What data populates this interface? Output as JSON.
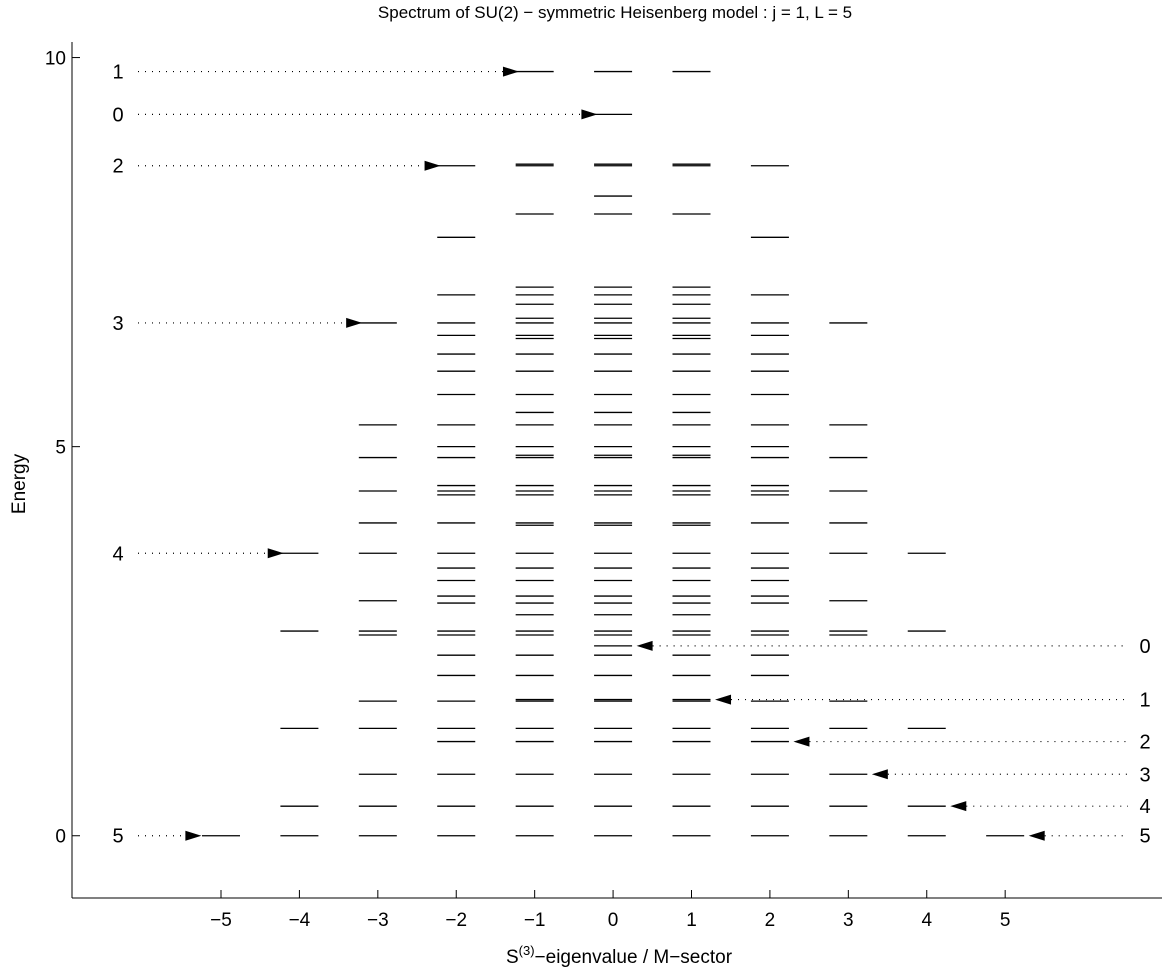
{
  "chart_data": {
    "type": "scatter",
    "marker": "horizontal-dash",
    "title": "Spectrum of SU(2) − symmetric Heisenberg model : j = 1,  L = 5",
    "xlabel": {
      "base": "S",
      "sup": "(3)",
      "rest": "−eigenvalue / M−sector"
    },
    "ylabel": "Energy",
    "xlim": [
      -6.9,
      7.0
    ],
    "ylim": [
      -0.8,
      10.2
    ],
    "x_ticks": [
      -5,
      -4,
      -3,
      -2,
      -1,
      0,
      1,
      2,
      3,
      4,
      5
    ],
    "x_tick_labels": [
      "−5",
      "−4",
      "−3",
      "−2",
      "−1",
      "0",
      "1",
      "2",
      "3",
      "4",
      "5"
    ],
    "y_ticks": [
      0,
      5,
      10
    ],
    "y_tick_labels": [
      "0",
      "5",
      "10"
    ],
    "levels_by_sector": {
      "5": [
        0
      ],
      "4": [
        0,
        0.38,
        1.38,
        2.63,
        3.63
      ],
      "3": [
        0,
        0.38,
        0.79,
        1.38,
        1.73,
        2.58,
        2.63,
        3.02,
        3.63,
        4.02,
        4.43,
        4.86,
        5.28,
        6.59
      ],
      "2": [
        0,
        0.38,
        0.79,
        1.21,
        1.38,
        1.73,
        2.06,
        2.32,
        2.58,
        2.63,
        2.99,
        3.08,
        3.28,
        3.44,
        3.63,
        4.02,
        4.38,
        4.43,
        4.5,
        4.86,
        5.0,
        5.28,
        5.67,
        5.97,
        6.19,
        6.43,
        6.59,
        6.95,
        7.69,
        8.61
      ],
      "1": [
        0,
        0.38,
        0.79,
        1.21,
        1.38,
        1.73,
        1.75,
        2.06,
        2.32,
        2.58,
        2.63,
        2.84,
        2.99,
        3.08,
        3.28,
        3.44,
        3.63,
        3.99,
        4.02,
        4.38,
        4.43,
        4.5,
        4.86,
        4.89,
        5.0,
        5.28,
        5.44,
        5.67,
        5.97,
        6.19,
        6.39,
        6.43,
        6.59,
        6.65,
        6.83,
        6.95,
        7.05,
        7.99,
        8.61,
        8.63,
        9.82
      ],
      "0": [
        0,
        0.38,
        0.79,
        1.21,
        1.38,
        1.73,
        1.75,
        2.06,
        2.32,
        2.44,
        2.58,
        2.63,
        2.84,
        2.99,
        3.08,
        3.28,
        3.44,
        3.63,
        3.99,
        4.02,
        4.38,
        4.43,
        4.5,
        4.86,
        4.89,
        5.0,
        5.28,
        5.44,
        5.67,
        5.97,
        6.19,
        6.39,
        6.43,
        6.59,
        6.65,
        6.83,
        6.95,
        7.05,
        7.99,
        8.22,
        8.61,
        8.63,
        9.27,
        9.82
      ]
    },
    "annotations": [
      {
        "label": "1",
        "y": 9.82,
        "side": "left",
        "arrow_x": -1.2
      },
      {
        "label": "0",
        "y": 9.27,
        "side": "left",
        "arrow_x": -0.2
      },
      {
        "label": "2",
        "y": 8.61,
        "side": "left",
        "arrow_x": -2.2
      },
      {
        "label": "3",
        "y": 6.59,
        "side": "left",
        "arrow_x": -3.2
      },
      {
        "label": "4",
        "y": 3.63,
        "side": "left",
        "arrow_x": -4.2
      },
      {
        "label": "5",
        "y": 0,
        "side": "left",
        "arrow_x": -5.25
      },
      {
        "label": "0",
        "y": 2.44,
        "side": "right",
        "arrow_x": 0.3
      },
      {
        "label": "1",
        "y": 1.75,
        "side": "right",
        "arrow_x": 1.3
      },
      {
        "label": "2",
        "y": 1.21,
        "side": "right",
        "arrow_x": 2.3
      },
      {
        "label": "3",
        "y": 0.79,
        "side": "right",
        "arrow_x": 3.3
      },
      {
        "label": "4",
        "y": 0.38,
        "side": "right",
        "arrow_x": 4.3
      },
      {
        "label": "5",
        "y": 0,
        "side": "right",
        "arrow_x": 5.3
      }
    ]
  }
}
